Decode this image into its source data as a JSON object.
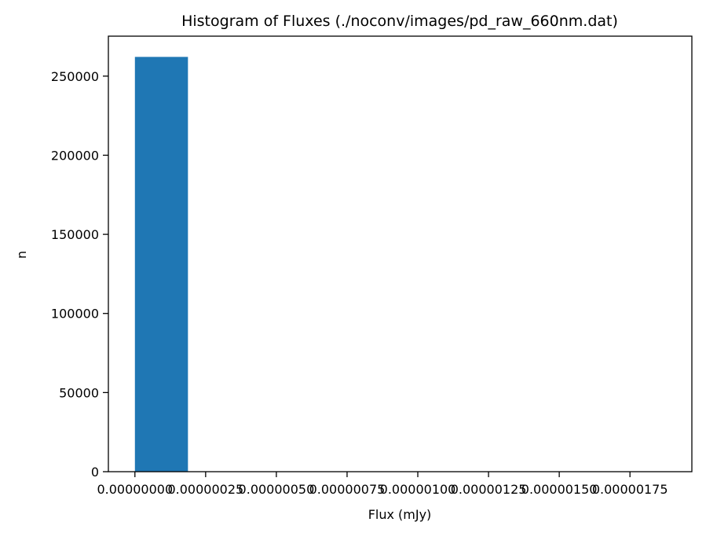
{
  "chart_data": {
    "type": "bar",
    "title": "Histogram of Fluxes (./noconv/images/pd_raw_660nm.dat)",
    "xlabel": "Flux (mJy)",
    "ylabel": "n",
    "bins": [
      {
        "x0": 0.0,
        "x1": 1.875e-07,
        "count": 262144
      },
      {
        "x0": 1.875e-07,
        "x1": 3.75e-07,
        "count": 0
      },
      {
        "x0": 3.75e-07,
        "x1": 5.625e-07,
        "count": 0
      },
      {
        "x0": 5.625e-07,
        "x1": 7.5e-07,
        "count": 0
      },
      {
        "x0": 7.5e-07,
        "x1": 9.375e-07,
        "count": 0
      },
      {
        "x0": 9.375e-07,
        "x1": 1.125e-06,
        "count": 0
      },
      {
        "x0": 1.125e-06,
        "x1": 1.3125e-06,
        "count": 0
      },
      {
        "x0": 1.3125e-06,
        "x1": 1.5e-06,
        "count": 0
      },
      {
        "x0": 1.5e-06,
        "x1": 1.6875e-06,
        "count": 0
      },
      {
        "x0": 1.6875e-06,
        "x1": 1.875e-06,
        "count": 0
      }
    ],
    "xlim": [
      -9.38e-08,
      1.9688e-06
    ],
    "ylim": [
      0,
      275251
    ],
    "xticks": [
      0,
      2.5e-07,
      5e-07,
      7.5e-07,
      1e-06,
      1.25e-06,
      1.5e-06,
      1.75e-06
    ],
    "xtick_labels": [
      "0.00000000",
      "0.00000025",
      "0.00000050",
      "0.00000075",
      "0.00000100",
      "0.00000125",
      "0.00000150",
      "0.00000175"
    ],
    "yticks": [
      0,
      50000,
      100000,
      150000,
      200000,
      250000
    ],
    "ytick_labels": [
      "0",
      "50000",
      "100000",
      "150000",
      "200000",
      "250000"
    ],
    "bar_color": "#1f77b4",
    "grid": false,
    "legend": false
  }
}
